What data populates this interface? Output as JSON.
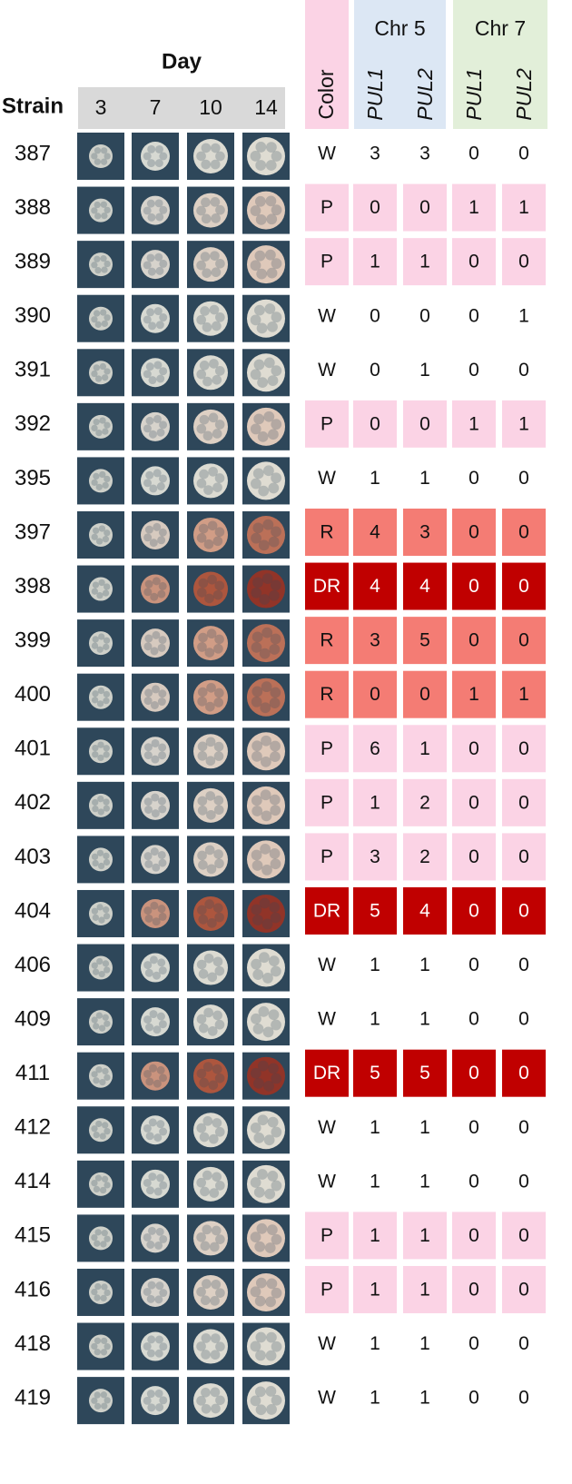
{
  "header": {
    "strain": "Strain",
    "day": "Day",
    "days": [
      3,
      7,
      10,
      14
    ],
    "color": "Color",
    "color_header_fill": "#fbd3e5",
    "groups": [
      {
        "title": "Chr 5",
        "fill": "#dce7f4",
        "columns": [
          "PUL1",
          "PUL2"
        ]
      },
      {
        "title": "Chr 7",
        "fill": "#e2efd9",
        "columns": [
          "PUL1",
          "PUL2"
        ]
      }
    ]
  },
  "cell_fills": {
    "W": "#ffffff",
    "P": "#fbd3e5",
    "R": "#f47c74",
    "DR": "#c00000"
  },
  "cell_text_colors": {
    "W": "#111111",
    "P": "#111111",
    "R": "#111111",
    "DR": "#ffffff"
  },
  "colony_colors": {
    "W": [
      "#dcdcd2",
      "#e6e6dc",
      "#ece8dc",
      "#efe9dc"
    ],
    "P": [
      "#dcdcd2",
      "#e6e0d6",
      "#eddccd",
      "#efd5c2"
    ],
    "R": [
      "#dcdcd2",
      "#e6d6c8",
      "#e0a58a",
      "#c87458"
    ],
    "DR": [
      "#dcdcd2",
      "#d89a80",
      "#b8583c",
      "#9a3324"
    ]
  },
  "rows": [
    {
      "strain": "387",
      "color": "W",
      "counts": [
        3,
        3,
        0,
        0
      ]
    },
    {
      "strain": "388",
      "color": "P",
      "counts": [
        0,
        0,
        1,
        1
      ]
    },
    {
      "strain": "389",
      "color": "P",
      "counts": [
        1,
        1,
        0,
        0
      ]
    },
    {
      "strain": "390",
      "color": "W",
      "counts": [
        0,
        0,
        0,
        1
      ]
    },
    {
      "strain": "391",
      "color": "W",
      "counts": [
        0,
        1,
        0,
        0
      ]
    },
    {
      "strain": "392",
      "color": "P",
      "counts": [
        0,
        0,
        1,
        1
      ]
    },
    {
      "strain": "395",
      "color": "W",
      "counts": [
        1,
        1,
        0,
        0
      ]
    },
    {
      "strain": "397",
      "color": "R",
      "counts": [
        4,
        3,
        0,
        0
      ]
    },
    {
      "strain": "398",
      "color": "DR",
      "counts": [
        4,
        4,
        0,
        0
      ]
    },
    {
      "strain": "399",
      "color": "R",
      "counts": [
        3,
        5,
        0,
        0
      ]
    },
    {
      "strain": "400",
      "color": "R",
      "counts": [
        0,
        0,
        1,
        1
      ]
    },
    {
      "strain": "401",
      "color": "P",
      "counts": [
        6,
        1,
        0,
        0
      ]
    },
    {
      "strain": "402",
      "color": "P",
      "counts": [
        1,
        2,
        0,
        0
      ]
    },
    {
      "strain": "403",
      "color": "P",
      "counts": [
        3,
        2,
        0,
        0
      ]
    },
    {
      "strain": "404",
      "color": "DR",
      "counts": [
        5,
        4,
        0,
        0
      ]
    },
    {
      "strain": "406",
      "color": "W",
      "counts": [
        1,
        1,
        0,
        0
      ]
    },
    {
      "strain": "409",
      "color": "W",
      "counts": [
        1,
        1,
        0,
        0
      ]
    },
    {
      "strain": "411",
      "color": "DR",
      "counts": [
        5,
        5,
        0,
        0
      ]
    },
    {
      "strain": "412",
      "color": "W",
      "counts": [
        1,
        1,
        0,
        0
      ]
    },
    {
      "strain": "414",
      "color": "W",
      "counts": [
        1,
        1,
        0,
        0
      ]
    },
    {
      "strain": "415",
      "color": "P",
      "counts": [
        1,
        1,
        0,
        0
      ]
    },
    {
      "strain": "416",
      "color": "P",
      "counts": [
        1,
        1,
        0,
        0
      ]
    },
    {
      "strain": "418",
      "color": "W",
      "counts": [
        1,
        1,
        0,
        0
      ]
    },
    {
      "strain": "419",
      "color": "W",
      "counts": [
        1,
        1,
        0,
        0
      ]
    }
  ]
}
